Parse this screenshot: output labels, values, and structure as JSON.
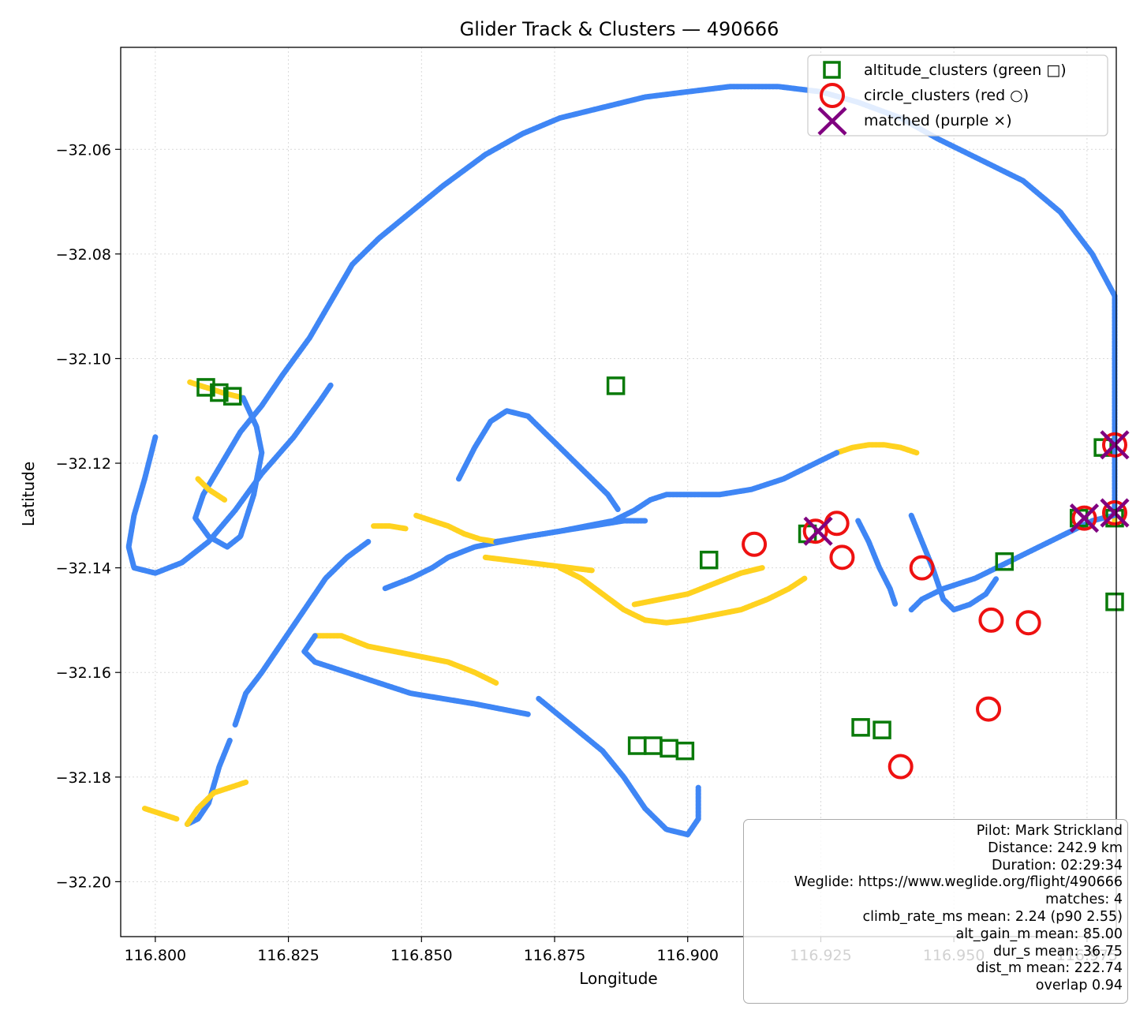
{
  "chart_data": {
    "type": "scatter",
    "title": "Glider Track & Clusters — 490666",
    "xlabel": "Longitude",
    "ylabel": "Latitude",
    "xlim": [
      116.7935,
      116.9805
    ],
    "ylim": [
      -32.2105,
      -32.0405
    ],
    "xticks": [
      "116.800",
      "116.825",
      "116.850",
      "116.875",
      "116.900",
      "116.925",
      "116.950",
      "116.975"
    ],
    "xtick_values": [
      116.8,
      116.825,
      116.85,
      116.875,
      116.9,
      116.925,
      116.95,
      116.975
    ],
    "yticks": [
      "−32.06",
      "−32.08",
      "−32.10",
      "−32.12",
      "−32.14",
      "−32.16",
      "−32.18",
      "−32.20"
    ],
    "ytick_values": [
      -32.06,
      -32.08,
      -32.1,
      -32.12,
      -32.14,
      -32.16,
      -32.18,
      -32.2
    ],
    "grid": true,
    "legend_position": "top-right",
    "colors": {
      "track_climb": "#ffd21f",
      "track_glide": "#3f86f5",
      "altitude": "#0a7a0a",
      "circle": "#ee1111",
      "matched": "#800080",
      "grid": "#d9d9d9"
    },
    "legend": [
      {
        "label": "altitude_clusters (green □)",
        "marker": "square",
        "color": "#0a7a0a"
      },
      {
        "label": "circle_clusters (red ○)",
        "marker": "circle",
        "color": "#ee1111"
      },
      {
        "label": "matched (purple ×)",
        "marker": "x",
        "color": "#800080"
      }
    ],
    "track_segments": [
      {
        "phase": "climb",
        "points": [
          [
            116.8065,
            -32.1045
          ],
          [
            116.8085,
            -32.1052
          ],
          [
            116.8105,
            -32.1058
          ],
          [
            116.8125,
            -32.1065
          ],
          [
            116.8145,
            -32.107
          ],
          [
            116.8165,
            -32.1075
          ]
        ]
      },
      {
        "phase": "glide",
        "points": [
          [
            116.8165,
            -32.1075
          ],
          [
            116.819,
            -32.113
          ],
          [
            116.82,
            -32.118
          ],
          [
            116.8185,
            -32.126
          ],
          [
            116.816,
            -32.134
          ],
          [
            116.8135,
            -32.136
          ],
          [
            116.81,
            -32.134
          ],
          [
            116.8075,
            -32.1305
          ],
          [
            116.809,
            -32.126
          ],
          [
            116.8125,
            -32.12
          ],
          [
            116.816,
            -32.114
          ],
          [
            116.82,
            -32.109
          ],
          [
            116.824,
            -32.103
          ],
          [
            116.829,
            -32.096
          ],
          [
            116.833,
            -32.089
          ],
          [
            116.837,
            -32.082
          ],
          [
            116.842,
            -32.077
          ],
          [
            116.848,
            -32.072
          ],
          [
            116.854,
            -32.067
          ],
          [
            116.862,
            -32.061
          ],
          [
            116.869,
            -32.057
          ],
          [
            116.876,
            -32.054
          ],
          [
            116.884,
            -32.052
          ],
          [
            116.892,
            -32.05
          ],
          [
            116.9,
            -32.049
          ],
          [
            116.908,
            -32.048
          ],
          [
            116.917,
            -32.048
          ],
          [
            116.925,
            -32.049
          ],
          [
            116.932,
            -32.051
          ],
          [
            116.94,
            -32.054
          ],
          [
            116.947,
            -32.058
          ],
          [
            116.955,
            -32.062
          ],
          [
            116.963,
            -32.066
          ],
          [
            116.97,
            -32.072
          ],
          [
            116.976,
            -32.08
          ],
          [
            116.982,
            -32.088
          ],
          [
            116.987,
            -32.096
          ],
          [
            116.992,
            -32.103
          ],
          [
            116.994,
            -32.11
          ],
          [
            116.995,
            -32.116
          ],
          [
            116.993,
            -32.121
          ],
          [
            116.989,
            -32.125
          ],
          [
            116.985,
            -32.128
          ],
          [
            116.98,
            -32.13
          ]
        ]
      },
      {
        "phase": "climb",
        "points": [
          [
            116.98,
            -32.13
          ],
          [
            116.984,
            -32.13
          ],
          [
            116.988,
            -32.1305
          ],
          [
            116.992,
            -32.131
          ],
          [
            116.996,
            -32.1315
          ],
          [
            116.999,
            -32.1315
          ]
        ]
      },
      {
        "phase": "glide",
        "points": [
          [
            116.98,
            -32.13
          ],
          [
            116.976,
            -32.131
          ],
          [
            116.97,
            -32.134
          ],
          [
            116.962,
            -32.138
          ],
          [
            116.954,
            -32.142
          ],
          [
            116.948,
            -32.144
          ],
          [
            116.944,
            -32.146
          ],
          [
            116.942,
            -32.148
          ]
        ]
      },
      {
        "phase": "glide",
        "points": [
          [
            116.942,
            -32.13
          ],
          [
            116.944,
            -32.135
          ],
          [
            116.946,
            -32.14
          ],
          [
            116.948,
            -32.146
          ],
          [
            116.95,
            -32.148
          ],
          [
            116.953,
            -32.147
          ],
          [
            116.956,
            -32.145
          ],
          [
            116.958,
            -32.142
          ]
        ]
      },
      {
        "phase": "climb",
        "points": [
          [
            116.928,
            -32.118
          ],
          [
            116.931,
            -32.117
          ],
          [
            116.934,
            -32.1165
          ],
          [
            116.937,
            -32.1165
          ],
          [
            116.94,
            -32.117
          ],
          [
            116.943,
            -32.118
          ]
        ]
      },
      {
        "phase": "glide",
        "points": [
          [
            116.928,
            -32.118
          ],
          [
            116.924,
            -32.12
          ],
          [
            116.918,
            -32.123
          ],
          [
            116.912,
            -32.125
          ],
          [
            116.906,
            -32.126
          ],
          [
            116.9,
            -32.126
          ],
          [
            116.896,
            -32.126
          ],
          [
            116.893,
            -32.127
          ],
          [
            116.89,
            -32.129
          ],
          [
            116.886,
            -32.131
          ],
          [
            116.881,
            -32.132
          ],
          [
            116.876,
            -32.133
          ],
          [
            116.87,
            -32.134
          ],
          [
            116.865,
            -32.135
          ],
          [
            116.86,
            -32.136
          ],
          [
            116.855,
            -32.138
          ],
          [
            116.852,
            -32.14
          ],
          [
            116.848,
            -32.142
          ],
          [
            116.843,
            -32.144
          ]
        ]
      },
      {
        "phase": "glide",
        "points": [
          [
            116.932,
            -32.131
          ],
          [
            116.934,
            -32.135
          ],
          [
            116.936,
            -32.14
          ],
          [
            116.938,
            -32.144
          ],
          [
            116.939,
            -32.147
          ]
        ]
      },
      {
        "phase": "climb",
        "points": [
          [
            116.849,
            -32.13
          ],
          [
            116.852,
            -32.131
          ],
          [
            116.855,
            -32.132
          ],
          [
            116.858,
            -32.1335
          ],
          [
            116.861,
            -32.1345
          ],
          [
            116.864,
            -32.135
          ]
        ]
      },
      {
        "phase": "climb",
        "points": [
          [
            116.862,
            -32.138
          ],
          [
            116.866,
            -32.1385
          ],
          [
            116.87,
            -32.139
          ],
          [
            116.874,
            -32.1395
          ],
          [
            116.878,
            -32.14
          ],
          [
            116.882,
            -32.1405
          ]
        ]
      },
      {
        "phase": "climb",
        "points": [
          [
            116.841,
            -32.132
          ],
          [
            116.844,
            -32.132
          ],
          [
            116.847,
            -32.1325
          ]
        ]
      },
      {
        "phase": "glide",
        "points": [
          [
            116.864,
            -32.135
          ],
          [
            116.87,
            -32.134
          ],
          [
            116.876,
            -32.133
          ],
          [
            116.882,
            -32.132
          ],
          [
            116.888,
            -32.131
          ],
          [
            116.892,
            -32.131
          ]
        ]
      },
      {
        "phase": "glide",
        "points": [
          [
            116.857,
            -32.123
          ],
          [
            116.86,
            -32.117
          ],
          [
            116.863,
            -32.112
          ],
          [
            116.866,
            -32.11
          ],
          [
            116.87,
            -32.111
          ],
          [
            116.873,
            -32.114
          ],
          [
            116.876,
            -32.117
          ],
          [
            116.879,
            -32.12
          ],
          [
            116.882,
            -32.123
          ],
          [
            116.885,
            -32.126
          ],
          [
            116.887,
            -32.129
          ]
        ]
      },
      {
        "phase": "climb",
        "points": [
          [
            116.89,
            -32.147
          ],
          [
            116.895,
            -32.146
          ],
          [
            116.9,
            -32.145
          ],
          [
            116.905,
            -32.143
          ],
          [
            116.91,
            -32.141
          ],
          [
            116.914,
            -32.14
          ]
        ]
      },
      {
        "phase": "climb",
        "points": [
          [
            116.876,
            -32.14
          ],
          [
            116.88,
            -32.142
          ],
          [
            116.884,
            -32.145
          ],
          [
            116.888,
            -32.148
          ],
          [
            116.892,
            -32.15
          ],
          [
            116.896,
            -32.1505
          ],
          [
            116.9,
            -32.15
          ],
          [
            116.905,
            -32.149
          ],
          [
            116.91,
            -32.148
          ],
          [
            116.915,
            -32.146
          ],
          [
            116.919,
            -32.144
          ],
          [
            116.922,
            -32.142
          ]
        ]
      },
      {
        "phase": "climb",
        "points": [
          [
            116.83,
            -32.153
          ],
          [
            116.835,
            -32.153
          ],
          [
            116.84,
            -32.155
          ],
          [
            116.845,
            -32.156
          ],
          [
            116.85,
            -32.157
          ],
          [
            116.855,
            -32.158
          ],
          [
            116.86,
            -32.16
          ],
          [
            116.864,
            -32.162
          ]
        ]
      },
      {
        "phase": "glide",
        "points": [
          [
            116.83,
            -32.153
          ],
          [
            116.828,
            -32.156
          ],
          [
            116.83,
            -32.158
          ],
          [
            116.836,
            -32.16
          ],
          [
            116.842,
            -32.162
          ],
          [
            116.848,
            -32.164
          ],
          [
            116.854,
            -32.165
          ],
          [
            116.86,
            -32.166
          ],
          [
            116.865,
            -32.167
          ],
          [
            116.87,
            -32.168
          ]
        ]
      },
      {
        "phase": "glide",
        "points": [
          [
            116.84,
            -32.135
          ],
          [
            116.836,
            -32.138
          ],
          [
            116.832,
            -32.142
          ],
          [
            116.828,
            -32.148
          ],
          [
            116.824,
            -32.154
          ],
          [
            116.82,
            -32.16
          ],
          [
            116.817,
            -32.164
          ],
          [
            116.815,
            -32.17
          ]
        ]
      },
      {
        "phase": "glide",
        "points": [
          [
            116.8,
            -32.115
          ],
          [
            116.798,
            -32.123
          ],
          [
            116.796,
            -32.13
          ],
          [
            116.795,
            -32.136
          ],
          [
            116.796,
            -32.14
          ],
          [
            116.8,
            -32.141
          ],
          [
            116.805,
            -32.139
          ],
          [
            116.81,
            -32.135
          ],
          [
            116.815,
            -32.129
          ],
          [
            116.82,
            -32.122
          ],
          [
            116.826,
            -32.115
          ],
          [
            116.831,
            -32.108
          ],
          [
            116.833,
            -32.105
          ]
        ]
      },
      {
        "phase": "climb",
        "points": [
          [
            116.808,
            -32.123
          ],
          [
            116.81,
            -32.125
          ],
          [
            116.813,
            -32.127
          ]
        ]
      },
      {
        "phase": "glide",
        "points": [
          [
            116.872,
            -32.165
          ],
          [
            116.878,
            -32.17
          ],
          [
            116.884,
            -32.175
          ],
          [
            116.888,
            -32.18
          ],
          [
            116.892,
            -32.186
          ],
          [
            116.896,
            -32.19
          ],
          [
            116.9,
            -32.191
          ],
          [
            116.902,
            -32.188
          ],
          [
            116.902,
            -32.182
          ]
        ]
      },
      {
        "phase": "glide",
        "points": [
          [
            116.814,
            -32.173
          ],
          [
            116.812,
            -32.178
          ],
          [
            116.81,
            -32.185
          ],
          [
            116.808,
            -32.188
          ],
          [
            116.806,
            -32.189
          ]
        ]
      },
      {
        "phase": "climb",
        "points": [
          [
            116.806,
            -32.189
          ],
          [
            116.808,
            -32.186
          ],
          [
            116.811,
            -32.183
          ],
          [
            116.814,
            -32.182
          ],
          [
            116.817,
            -32.181
          ]
        ]
      },
      {
        "phase": "climb",
        "points": [
          [
            116.798,
            -32.186
          ],
          [
            116.801,
            -32.187
          ],
          [
            116.804,
            -32.188
          ]
        ]
      }
    ],
    "altitude_clusters": [
      [
        116.8095,
        -32.1055
      ],
      [
        116.812,
        -32.1065
      ],
      [
        116.8145,
        -32.1072
      ],
      [
        116.8865,
        -32.1052
      ],
      [
        116.904,
        -32.1385
      ],
      [
        116.9225,
        -32.1335
      ],
      [
        116.9595,
        -32.1388
      ],
      [
        116.9735,
        -32.1305
      ],
      [
        116.978,
        -32.117
      ],
      [
        116.9825,
        -32.1305
      ],
      [
        116.9825,
        -32.1465
      ],
      [
        116.9325,
        -32.1705
      ],
      [
        116.9365,
        -32.171
      ],
      [
        116.8905,
        -32.174
      ],
      [
        116.8935,
        -32.174
      ],
      [
        116.8965,
        -32.1745
      ],
      [
        116.8995,
        -32.175
      ]
    ],
    "circle_clusters": [
      [
        116.9125,
        -32.1355
      ],
      [
        116.924,
        -32.133
      ],
      [
        116.928,
        -32.1315
      ],
      [
        116.929,
        -32.138
      ],
      [
        116.944,
        -32.14
      ],
      [
        116.957,
        -32.15
      ],
      [
        116.964,
        -32.1505
      ],
      [
        116.9745,
        -32.1305
      ],
      [
        116.9805,
        -32.1165
      ],
      [
        116.9885,
        -32.1295
      ],
      [
        116.9565,
        -32.167
      ],
      [
        116.94,
        -32.178
      ]
    ],
    "matched": [
      [
        116.9245,
        -32.133
      ],
      [
        116.9745,
        -32.1305
      ],
      [
        116.9805,
        -32.1165
      ],
      [
        116.9885,
        -32.1295
      ]
    ],
    "info_box": [
      "Pilot: Mark Strickland",
      "Distance: 242.9 km",
      "Duration: 02:29:34",
      "Weglide: https://www.weglide.org/flight/490666",
      "matches: 4",
      "climb_rate_ms mean: 2.24 (p90 2.55)",
      "alt_gain_m mean: 85.00",
      "dur_s mean: 36.75",
      "dist_m mean: 222.74",
      "overlap 0.94"
    ]
  }
}
